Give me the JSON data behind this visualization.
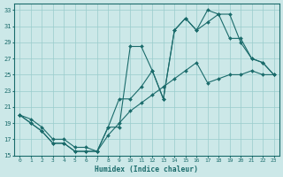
{
  "xlabel": "Humidex (Indice chaleur)",
  "bg_color": "#cce8e8",
  "grid_color": "#99cccc",
  "line_color": "#1a6b6b",
  "xlim_min": -0.5,
  "xlim_max": 23.5,
  "ylim_min": 15,
  "ylim_max": 33.8,
  "xticks": [
    0,
    1,
    2,
    3,
    4,
    5,
    6,
    7,
    8,
    9,
    10,
    11,
    12,
    13,
    14,
    15,
    16,
    17,
    18,
    19,
    20,
    21,
    22,
    23
  ],
  "yticks": [
    15,
    17,
    19,
    21,
    23,
    25,
    27,
    29,
    31,
    33
  ],
  "line1_x": [
    0,
    1,
    2,
    3,
    4,
    5,
    6,
    7,
    8,
    9,
    10,
    11,
    12,
    13,
    14,
    15,
    16,
    17,
    18,
    19,
    20,
    21,
    22,
    23
  ],
  "line1_y": [
    20.0,
    19.0,
    18.0,
    16.5,
    16.5,
    15.5,
    15.5,
    15.5,
    18.5,
    18.5,
    28.5,
    28.5,
    25.5,
    22.0,
    30.5,
    32.0,
    30.5,
    33.0,
    32.5,
    29.5,
    29.5,
    27.0,
    26.5,
    25.0
  ],
  "line2_x": [
    0,
    1,
    2,
    3,
    4,
    5,
    6,
    7,
    8,
    9,
    10,
    11,
    12,
    13,
    14,
    15,
    16,
    17,
    18,
    19,
    20,
    21,
    22,
    23
  ],
  "line2_y": [
    20.0,
    19.0,
    18.0,
    16.5,
    16.5,
    15.5,
    15.5,
    15.5,
    18.5,
    22.0,
    22.0,
    23.5,
    25.5,
    22.0,
    30.5,
    32.0,
    30.5,
    31.5,
    32.5,
    32.5,
    29.0,
    27.0,
    26.5,
    25.0
  ],
  "line3_x": [
    0,
    1,
    2,
    3,
    4,
    5,
    6,
    7,
    8,
    9,
    10,
    11,
    12,
    13,
    14,
    15,
    16,
    17,
    18,
    19,
    20,
    21,
    22,
    23
  ],
  "line3_y": [
    20.0,
    19.5,
    18.5,
    17.0,
    17.0,
    16.0,
    16.0,
    15.5,
    17.5,
    19.0,
    20.5,
    21.5,
    22.5,
    23.5,
    24.5,
    25.5,
    26.5,
    24.0,
    24.5,
    25.0,
    25.0,
    25.5,
    25.0,
    25.0
  ]
}
